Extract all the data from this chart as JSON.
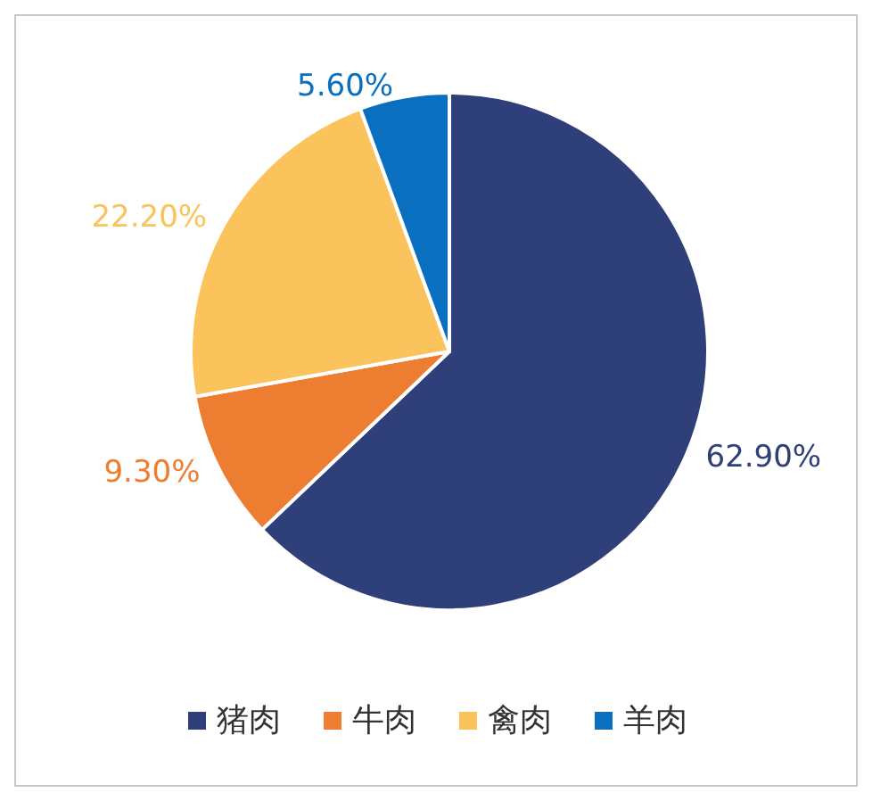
{
  "chart_data": {
    "type": "pie",
    "categories": [
      "猪肉",
      "牛肉",
      "禽肉",
      "羊肉"
    ],
    "values": [
      62.9,
      9.3,
      22.2,
      5.6
    ],
    "value_labels": [
      "62.90%",
      "9.30%",
      "22.20%",
      "5.60%"
    ],
    "colors": [
      "#2e3f7a",
      "#ed7d31",
      "#fbc35c",
      "#0a6fbf"
    ],
    "legend": "bottom"
  }
}
